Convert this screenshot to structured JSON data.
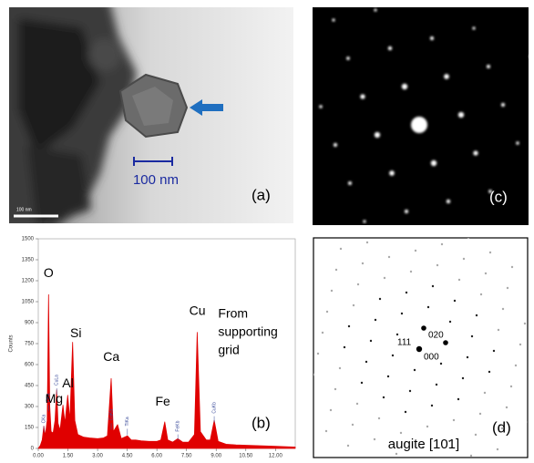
{
  "panels": {
    "a": {
      "label": "(a)",
      "scale_bar": "100 nm",
      "inset_scale_bar": "100 nm"
    },
    "c": {
      "label": "(c)"
    },
    "d": {
      "label": "(d)",
      "caption": "augite [101]",
      "spots": [
        "020",
        "111",
        "000"
      ]
    }
  },
  "chart_data": {
    "type": "area",
    "label": "(b)",
    "ylabel": "Counts",
    "color": "#e00000",
    "x": [
      0.0,
      0.1,
      0.2,
      0.28,
      0.35,
      0.45,
      0.52,
      0.58,
      0.65,
      0.75,
      0.85,
      0.93,
      1.0,
      1.1,
      1.25,
      1.35,
      1.49,
      1.6,
      1.74,
      1.85,
      2.0,
      2.3,
      2.6,
      3.0,
      3.3,
      3.5,
      3.69,
      3.8,
      4.01,
      4.2,
      4.51,
      4.7,
      4.93,
      5.2,
      5.6,
      6.0,
      6.2,
      6.4,
      6.55,
      6.8,
      7.06,
      7.3,
      7.6,
      7.9,
      8.04,
      8.2,
      8.5,
      8.7,
      8.9,
      9.1,
      9.5,
      10.0,
      11.0,
      12.0,
      13.0
    ],
    "values": [
      0,
      20,
      60,
      160,
      90,
      200,
      1100,
      300,
      120,
      110,
      200,
      420,
      180,
      130,
      310,
      180,
      380,
      200,
      760,
      200,
      100,
      80,
      75,
      70,
      75,
      90,
      500,
      120,
      170,
      70,
      90,
      60,
      60,
      55,
      50,
      50,
      60,
      190,
      60,
      45,
      70,
      45,
      45,
      100,
      830,
      120,
      60,
      60,
      200,
      50,
      30,
      25,
      20,
      15,
      10
    ],
    "xlim": [
      0,
      13
    ],
    "ylim": [
      0,
      1500
    ],
    "yticks": [
      0,
      150,
      300,
      450,
      600,
      750,
      900,
      1050,
      1200,
      1350,
      1500
    ],
    "xticks": [
      {
        "value": 0,
        "label": "0.00"
      },
      {
        "value": 1.5,
        "label": "1.50"
      },
      {
        "value": 3,
        "label": "3.00"
      },
      {
        "value": 4.5,
        "label": "4.50"
      },
      {
        "value": 6,
        "label": "6.00"
      },
      {
        "value": 7.5,
        "label": "7.50"
      },
      {
        "value": 9,
        "label": "9.00"
      },
      {
        "value": 10.5,
        "label": "10.50"
      },
      {
        "value": 12,
        "label": "12.00"
      }
    ],
    "annotations": [
      {
        "text": "O",
        "x": 0.52,
        "y": 1250
      },
      {
        "text": "Si",
        "x": 1.9,
        "y": 820
      },
      {
        "text": "Al",
        "x": 1.5,
        "y": 460
      },
      {
        "text": "Mg",
        "x": 0.8,
        "y": 350
      },
      {
        "text": "Ca",
        "x": 3.7,
        "y": 650
      },
      {
        "text": "Fe",
        "x": 6.3,
        "y": 330
      },
      {
        "text": "Cu",
        "x": 8.05,
        "y": 980
      },
      {
        "text": "From",
        "x": 9.1,
        "y": 960
      },
      {
        "text": "supporting",
        "x": 9.1,
        "y": 830
      },
      {
        "text": "grid",
        "x": 9.1,
        "y": 700
      }
    ],
    "peak_labels": [
      {
        "text": "CKa",
        "x": 0.28,
        "y": 180
      },
      {
        "text": "OKa",
        "x": 0.52,
        "y": 330
      },
      {
        "text": "CuLa",
        "x": 0.93,
        "y": 450
      },
      {
        "text": "CaKa",
        "x": 3.69,
        "y": 200
      },
      {
        "text": "TiKa",
        "x": 4.51,
        "y": 160
      },
      {
        "text": "FeKb",
        "x": 7.06,
        "y": 120
      },
      {
        "text": "CuKb",
        "x": 8.9,
        "y": 250
      }
    ]
  }
}
